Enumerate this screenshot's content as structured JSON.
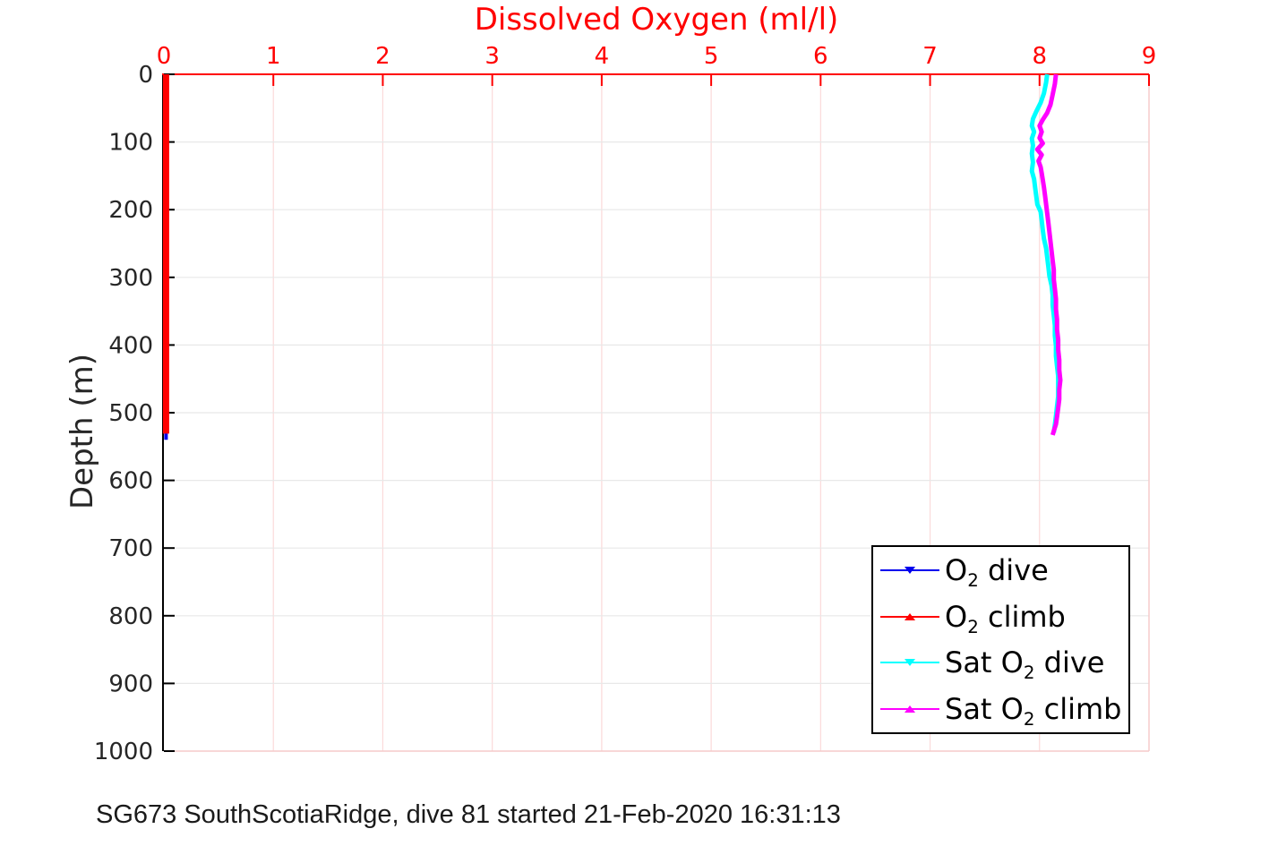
{
  "title": "Dissolved Oxygen (ml/l)",
  "caption": "SG673 SouthScotiaRidge, dive 81 started 21-Feb-2020 16:31:13",
  "legend": {
    "items": [
      {
        "pre": "O",
        "sub": "2",
        "post": " dive",
        "color": "#0000ee",
        "marker": "down"
      },
      {
        "pre": "O",
        "sub": "2",
        "post": " climb",
        "color": "#ff0000",
        "marker": "up"
      },
      {
        "pre": "Sat O",
        "sub": "2",
        "post": " dive",
        "color": "#00ffff",
        "marker": "down"
      },
      {
        "pre": "Sat O",
        "sub": "2",
        "post": " climb",
        "color": "#ff00ff",
        "marker": "up"
      }
    ]
  },
  "chart_data": {
    "type": "line",
    "title": "Dissolved Oxygen (ml/l)",
    "xlabel": "Dissolved Oxygen (ml/l)",
    "ylabel": "Depth (m)",
    "x_axis_position": "top",
    "y_inverted": true,
    "xlim": [
      0,
      9
    ],
    "ylim": [
      0,
      1000
    ],
    "x_ticks": [
      0,
      1,
      2,
      3,
      4,
      5,
      6,
      7,
      8,
      9
    ],
    "y_ticks": [
      0,
      100,
      200,
      300,
      400,
      500,
      600,
      700,
      800,
      900,
      1000
    ],
    "grid": true,
    "legend_position": "inside-lower-right",
    "axis_colors": {
      "x_axis": "#ff0000",
      "y_axis": "#000000",
      "x_grid": "#fbdada",
      "y_grid": "#e8e8e8",
      "box_right_bottom": "#f5caca",
      "tick_label_x": "#ff0000",
      "tick_label_y": "#262626"
    },
    "series": [
      {
        "name": "O2 dive",
        "color": "#0000ee",
        "marker": "triangle-down",
        "stroke_width": 4,
        "points": [
          [
            0.02,
            0
          ],
          [
            0.02,
            540
          ]
        ]
      },
      {
        "name": "O2 climb",
        "color": "#ff0000",
        "marker": "triangle-up",
        "stroke_width": 7,
        "points": [
          [
            0.02,
            0
          ],
          [
            0.02,
            531
          ]
        ]
      },
      {
        "name": "Sat O2 dive",
        "color": "#00ffff",
        "marker": "triangle-down",
        "stroke_width": 5,
        "points": [
          [
            8.07,
            0
          ],
          [
            8.06,
            12
          ],
          [
            8.04,
            28
          ],
          [
            8.01,
            42
          ],
          [
            7.97,
            55
          ],
          [
            7.94,
            66
          ],
          [
            7.93,
            76
          ],
          [
            7.95,
            85
          ],
          [
            7.93,
            95
          ],
          [
            7.94,
            105
          ],
          [
            7.93,
            117
          ],
          [
            7.94,
            130
          ],
          [
            7.93,
            143
          ],
          [
            7.95,
            155
          ],
          [
            7.96,
            168
          ],
          [
            7.97,
            180
          ],
          [
            7.98,
            192
          ],
          [
            8.01,
            203
          ],
          [
            8.02,
            216
          ],
          [
            8.03,
            230
          ],
          [
            8.04,
            243
          ],
          [
            8.06,
            257
          ],
          [
            8.07,
            270
          ],
          [
            8.08,
            284
          ],
          [
            8.09,
            298
          ],
          [
            8.11,
            312
          ],
          [
            8.12,
            326
          ],
          [
            8.12,
            341
          ],
          [
            8.13,
            356
          ],
          [
            8.14,
            371
          ],
          [
            8.14,
            386
          ],
          [
            8.15,
            401
          ],
          [
            8.15,
            416
          ],
          [
            8.16,
            431
          ],
          [
            8.17,
            446
          ],
          [
            8.17,
            461
          ],
          [
            8.17,
            476
          ],
          [
            8.16,
            491
          ],
          [
            8.15,
            505
          ],
          [
            8.14,
            518
          ],
          [
            8.13,
            529
          ]
        ]
      },
      {
        "name": "Sat O2 climb",
        "color": "#ff00ff",
        "marker": "triangle-up",
        "stroke_width": 5,
        "points": [
          [
            8.15,
            0
          ],
          [
            8.14,
            14
          ],
          [
            8.12,
            30
          ],
          [
            8.1,
            45
          ],
          [
            8.07,
            57
          ],
          [
            8.03,
            67
          ],
          [
            8.0,
            76
          ],
          [
            8.02,
            85
          ],
          [
            8.0,
            94
          ],
          [
            8.03,
            102
          ],
          [
            7.98,
            111
          ],
          [
            8.02,
            119
          ],
          [
            7.99,
            128
          ],
          [
            8.01,
            137
          ],
          [
            8.02,
            146
          ],
          [
            8.03,
            156
          ],
          [
            8.04,
            167
          ],
          [
            8.05,
            179
          ],
          [
            8.06,
            192
          ],
          [
            8.07,
            205
          ],
          [
            8.08,
            219
          ],
          [
            8.09,
            233
          ],
          [
            8.1,
            247
          ],
          [
            8.11,
            261
          ],
          [
            8.12,
            275
          ],
          [
            8.13,
            289
          ],
          [
            8.13,
            303
          ],
          [
            8.14,
            317
          ],
          [
            8.15,
            332
          ],
          [
            8.15,
            347
          ],
          [
            8.16,
            362
          ],
          [
            8.16,
            377
          ],
          [
            8.17,
            392
          ],
          [
            8.17,
            407
          ],
          [
            8.18,
            422
          ],
          [
            8.18,
            437
          ],
          [
            8.19,
            452
          ],
          [
            8.18,
            466
          ],
          [
            8.18,
            480
          ],
          [
            8.17,
            493
          ],
          [
            8.16,
            506
          ],
          [
            8.15,
            517
          ],
          [
            8.13,
            527
          ],
          [
            8.12,
            533
          ]
        ]
      }
    ]
  }
}
